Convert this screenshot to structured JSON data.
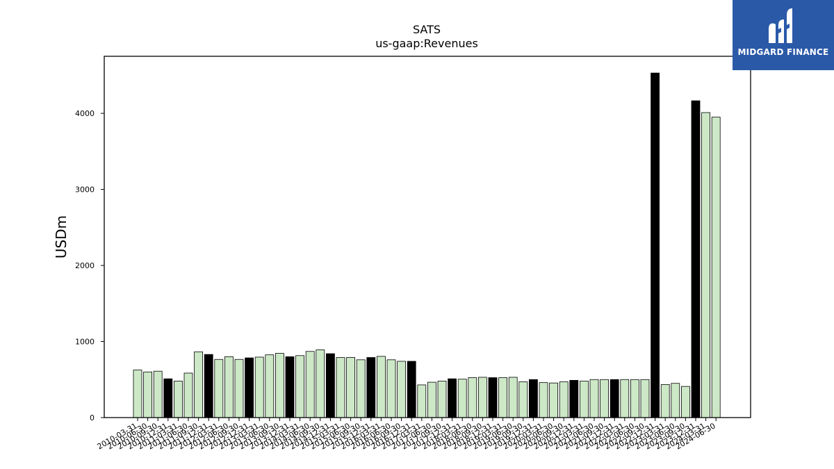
{
  "chart_data": {
    "type": "bar",
    "title": "SATS",
    "subtitle": "us-gaap:Revenues",
    "xlabel": "",
    "ylabel": "USDm",
    "ylim": [
      0,
      4750
    ],
    "yticks": [
      0,
      1000,
      2000,
      3000,
      4000
    ],
    "grid": false,
    "colors": {
      "quarter": "#cce8c6",
      "annual": "#000000",
      "edge": "#000000"
    },
    "categories": [
      "2010-03-31",
      "2010-06-30",
      "2010-09-30",
      "2010-12-31",
      "2011-03-31",
      "2011-06-30",
      "2011-09-30",
      "2011-12-31",
      "2012-03-31",
      "2012-06-30",
      "2012-09-30",
      "2012-12-31",
      "2013-03-31",
      "2013-06-30",
      "2013-09-30",
      "2013-12-31",
      "2014-03-31",
      "2014-06-30",
      "2014-09-30",
      "2014-12-31",
      "2015-03-31",
      "2015-06-30",
      "2015-09-30",
      "2015-12-31",
      "2016-03-31",
      "2016-06-30",
      "2016-09-30",
      "2016-12-31",
      "2017-03-31",
      "2017-06-30",
      "2017-09-30",
      "2017-12-31",
      "2018-03-31",
      "2018-06-30",
      "2018-09-30",
      "2018-12-31",
      "2019-03-31",
      "2019-06-30",
      "2019-09-30",
      "2019-12-31",
      "2020-03-31",
      "2020-06-30",
      "2020-09-30",
      "2020-12-31",
      "2021-03-31",
      "2021-06-30",
      "2021-09-30",
      "2021-12-31",
      "2022-03-31",
      "2022-06-30",
      "2022-09-30",
      "2022-12-31",
      "2023-03-31",
      "2023-06-30",
      "2023-09-30",
      "2023-12-31",
      "2024-03-31",
      "2024-06-30"
    ],
    "values": [
      625,
      600,
      610,
      510,
      480,
      585,
      865,
      830,
      765,
      800,
      765,
      785,
      795,
      825,
      845,
      800,
      815,
      870,
      890,
      840,
      790,
      790,
      760,
      790,
      805,
      760,
      740,
      740,
      430,
      465,
      480,
      510,
      505,
      525,
      530,
      525,
      525,
      530,
      470,
      500,
      460,
      455,
      470,
      490,
      480,
      500,
      500,
      500,
      500,
      500,
      500,
      4530,
      435,
      450,
      410,
      4165,
      4010,
      3950
    ],
    "annual_flags": [
      false,
      false,
      false,
      true,
      false,
      false,
      false,
      true,
      false,
      false,
      false,
      true,
      false,
      false,
      false,
      true,
      false,
      false,
      false,
      true,
      false,
      false,
      false,
      true,
      false,
      false,
      false,
      true,
      false,
      false,
      false,
      true,
      false,
      false,
      false,
      true,
      false,
      false,
      false,
      true,
      false,
      false,
      false,
      true,
      false,
      false,
      false,
      true,
      false,
      false,
      false,
      true,
      false,
      false,
      false,
      true,
      false,
      false
    ]
  },
  "logo": {
    "text": "MIDGARD FINANCE"
  }
}
